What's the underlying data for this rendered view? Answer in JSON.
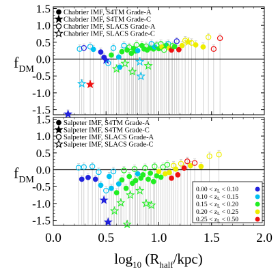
{
  "chart_data": [
    {
      "type": "scatter",
      "xlabel": "",
      "ylabel": "f",
      "ylabel_sub": "DM",
      "xlim": [
        0.0,
        2.0
      ],
      "ylim": [
        -1.65,
        1.55
      ],
      "yticks": [
        "1.5",
        "1.0",
        "0.5",
        "0.0",
        "-0.5",
        "-1.0",
        "-1.5"
      ],
      "ytick_values": [
        1.5,
        1.0,
        0.5,
        0.0,
        -0.5,
        -1.0,
        -1.5
      ],
      "zero_line": true,
      "grid": false,
      "legend_placement": "top-left",
      "legend": [
        {
          "label": "Chabrier IMF, S4TM Grade-A",
          "marker": "filled-circle"
        },
        {
          "label": "Chabrier IMF, S4TM Grade-C",
          "marker": "filled-star"
        },
        {
          "label": "Chabrier IMF, SLACS Grade-A",
          "marker": "open-circle"
        },
        {
          "label": "Chabrier IMF, SLACS Grade-C",
          "marker": "open-star"
        }
      ],
      "points": [
        {
          "x": 0.14,
          "y": -1.63,
          "m": "fstar",
          "c": 1
        },
        {
          "x": 0.27,
          "y": -0.73,
          "m": "ostar",
          "c": 2
        },
        {
          "x": 0.35,
          "y": -0.75,
          "m": "fstar",
          "c": 5
        },
        {
          "x": 0.25,
          "y": 0.3,
          "m": "ocircle",
          "c": 2
        },
        {
          "x": 0.29,
          "y": 0.33,
          "m": "ocircle",
          "c": 1
        },
        {
          "x": 0.35,
          "y": 0.37,
          "m": "ocircle",
          "c": 2
        },
        {
          "x": 0.38,
          "y": 0.29,
          "m": "fcircle",
          "c": 2
        },
        {
          "x": 0.45,
          "y": 0.21,
          "m": "fcircle",
          "c": 1
        },
        {
          "x": 0.48,
          "y": 0.05,
          "m": "fcircle",
          "c": 1
        },
        {
          "x": 0.5,
          "y": -0.03,
          "m": "fstar",
          "c": 1
        },
        {
          "x": 0.52,
          "y": -0.12,
          "m": "ocircle",
          "c": 2
        },
        {
          "x": 0.55,
          "y": 0.12,
          "m": "fcircle",
          "c": 3
        },
        {
          "x": 0.57,
          "y": 0.33,
          "m": "ocircle",
          "c": 2
        },
        {
          "x": 0.6,
          "y": -0.29,
          "m": "ostar",
          "c": 3
        },
        {
          "x": 0.62,
          "y": 0.06,
          "m": "fcircle",
          "c": 2
        },
        {
          "x": 0.63,
          "y": -0.24,
          "m": "fcircle",
          "c": 2
        },
        {
          "x": 0.65,
          "y": 0.22,
          "m": "fcircle",
          "c": 3
        },
        {
          "x": 0.67,
          "y": 0.4,
          "m": "ocircle",
          "c": 2
        },
        {
          "x": 0.68,
          "y": -0.13,
          "m": "ostar",
          "c": 3
        },
        {
          "x": 0.7,
          "y": 0.27,
          "m": "fcircle",
          "c": 3
        },
        {
          "x": 0.72,
          "y": 0.35,
          "m": "ocircle",
          "c": 3
        },
        {
          "x": 0.74,
          "y": 0.17,
          "m": "fcircle",
          "c": 3
        },
        {
          "x": 0.75,
          "y": -0.37,
          "m": "ostar",
          "c": 3
        },
        {
          "x": 0.76,
          "y": 0.32,
          "m": "fcircle",
          "c": 3
        },
        {
          "x": 0.78,
          "y": 0.24,
          "m": "fcircle",
          "c": 3
        },
        {
          "x": 0.79,
          "y": 0.42,
          "m": "ocircle",
          "c": 3
        },
        {
          "x": 0.8,
          "y": 0.25,
          "m": "fcircle",
          "c": 2
        },
        {
          "x": 0.82,
          "y": -0.08,
          "m": "ostar",
          "c": 2
        },
        {
          "x": 0.83,
          "y": -0.51,
          "m": "ostar",
          "c": 2
        },
        {
          "x": 0.84,
          "y": 0.4,
          "m": "fcircle",
          "c": 3
        },
        {
          "x": 0.86,
          "y": 0.3,
          "m": "fcircle",
          "c": 3
        },
        {
          "x": 0.88,
          "y": 0.38,
          "m": "ocircle",
          "c": 3
        },
        {
          "x": 0.89,
          "y": 0.27,
          "m": "fcircle",
          "c": 3
        },
        {
          "x": 0.9,
          "y": -0.2,
          "m": "ostar",
          "c": 3
        },
        {
          "x": 0.92,
          "y": 0.33,
          "m": "fcircle",
          "c": 3
        },
        {
          "x": 0.93,
          "y": 0.45,
          "m": "ocircle",
          "c": 2
        },
        {
          "x": 0.95,
          "y": 0.3,
          "m": "fcircle",
          "c": 3
        },
        {
          "x": 0.96,
          "y": 0.36,
          "m": "fcircle",
          "c": 2
        },
        {
          "x": 0.98,
          "y": 0.41,
          "m": "ocircle",
          "c": 3
        },
        {
          "x": 1.0,
          "y": 0.31,
          "m": "fcircle",
          "c": 3
        },
        {
          "x": 1.02,
          "y": 0.45,
          "m": "ocircle",
          "c": 3
        },
        {
          "x": 1.03,
          "y": 0.36,
          "m": "fcircle",
          "c": 4
        },
        {
          "x": 1.05,
          "y": 0.27,
          "m": "ocircle",
          "c": 3
        },
        {
          "x": 1.07,
          "y": 0.41,
          "m": "fcircle",
          "c": 3
        },
        {
          "x": 1.09,
          "y": 0.45,
          "m": "ocircle",
          "c": 2
        },
        {
          "x": 1.1,
          "y": 0.33,
          "m": "fcircle",
          "c": 4
        },
        {
          "x": 1.12,
          "y": 0.27,
          "m": "fcircle",
          "c": 5
        },
        {
          "x": 1.13,
          "y": 0.39,
          "m": "ocircle",
          "c": 3
        },
        {
          "x": 1.15,
          "y": 0.37,
          "m": "fcircle",
          "c": 3
        },
        {
          "x": 1.17,
          "y": 0.53,
          "m": "ocircle",
          "c": 1
        },
        {
          "x": 1.19,
          "y": 0.28,
          "m": "fcircle",
          "c": 5
        },
        {
          "x": 1.22,
          "y": 0.4,
          "m": "fcircle",
          "c": 4
        },
        {
          "x": 1.25,
          "y": 0.55,
          "m": "ocircle",
          "c": 4
        },
        {
          "x": 1.28,
          "y": 0.51,
          "m": "fstar",
          "c": 4
        },
        {
          "x": 1.31,
          "y": 0.48,
          "m": "ocircle",
          "c": 4
        },
        {
          "x": 1.35,
          "y": 0.42,
          "m": "fcircle",
          "c": 4
        },
        {
          "x": 1.42,
          "y": 0.36,
          "m": "fcircle",
          "c": 4
        },
        {
          "x": 1.47,
          "y": 0.65,
          "m": "ocircle",
          "c": 4
        },
        {
          "x": 1.52,
          "y": 0.3,
          "m": "ocircle",
          "c": 5
        },
        {
          "x": 1.58,
          "y": 0.62,
          "m": "ocircle",
          "c": 5
        }
      ]
    },
    {
      "type": "scatter",
      "xlabel": "log",
      "xlabel_sub": "10",
      "xlabel_rest": " (R",
      "xlabel_sub2": "half",
      "xlabel_end": "/kpc)",
      "ylabel": "f",
      "ylabel_sub": "DM",
      "xlim": [
        0.0,
        2.0
      ],
      "ylim": [
        -1.65,
        1.55
      ],
      "xticks": [
        "0.0",
        "0.5",
        "1.0",
        "1.5",
        "2.0"
      ],
      "xtick_values": [
        0.0,
        0.5,
        1.0,
        1.5,
        2.0
      ],
      "yticks": [
        "1.5",
        "1.0",
        "0.5",
        "0.0",
        "-0.5",
        "-1.0",
        "-1.5"
      ],
      "ytick_values": [
        1.5,
        1.0,
        0.5,
        0.0,
        -0.5,
        -1.0,
        -1.5
      ],
      "zero_line": true,
      "grid": false,
      "legend_placement": "top-left",
      "legend": [
        {
          "label": "Salpeter IMF, S4TM Grade-A",
          "marker": "filled-circle"
        },
        {
          "label": "Salpeter IMF, S4TM Grade-C",
          "marker": "filled-star"
        },
        {
          "label": "Salpeter IMF, SLACS Grade-A",
          "marker": "open-circle"
        },
        {
          "label": "Salpeter IMF, SLACS Grade-C",
          "marker": "open-star"
        }
      ],
      "redshift_legend_placement": "bottom-right",
      "redshift_bins": [
        {
          "label": "0.00 < z",
          "sub": "L",
          "rest": " < 0.10",
          "color": "#2222dd"
        },
        {
          "label": "0.10 < z",
          "sub": "L",
          "rest": " < 0.15",
          "color": "#00c0f0"
        },
        {
          "label": "0.15 < z",
          "sub": "L",
          "rest": " < 0.20",
          "color": "#22ee22"
        },
        {
          "label": "0.20 < z",
          "sub": "L",
          "rest": " < 0.25",
          "color": "#eeee00"
        },
        {
          "label": "0.25 < z",
          "sub": "L",
          "rest": " < 0.50",
          "color": "#ee1111"
        }
      ],
      "points": [
        {
          "x": 0.24,
          "y": 0.06,
          "m": "ocircle",
          "c": 2
        },
        {
          "x": 0.27,
          "y": -0.28,
          "m": "fcircle",
          "c": 1
        },
        {
          "x": 0.29,
          "y": 0.08,
          "m": "ocircle",
          "c": 2
        },
        {
          "x": 0.33,
          "y": -0.23,
          "m": "fcircle",
          "c": 1
        },
        {
          "x": 0.37,
          "y": 0.1,
          "m": "ocircle",
          "c": 2
        },
        {
          "x": 0.4,
          "y": -0.28,
          "m": "fcircle",
          "c": 1
        },
        {
          "x": 0.43,
          "y": -0.07,
          "m": "ocircle",
          "c": 2
        },
        {
          "x": 0.45,
          "y": -0.46,
          "m": "fcircle",
          "c": 2
        },
        {
          "x": 0.48,
          "y": -0.9,
          "m": "fstar",
          "c": 1
        },
        {
          "x": 0.5,
          "y": -0.62,
          "m": "ocircle",
          "c": 2
        },
        {
          "x": 0.52,
          "y": -1.55,
          "m": "fstar",
          "c": 1
        },
        {
          "x": 0.53,
          "y": -0.2,
          "m": "fcircle",
          "c": 2
        },
        {
          "x": 0.55,
          "y": -0.55,
          "m": "fcircle",
          "c": 2
        },
        {
          "x": 0.57,
          "y": -0.05,
          "m": "ocircle",
          "c": 2
        },
        {
          "x": 0.58,
          "y": -1.22,
          "m": "ostar",
          "c": 3
        },
        {
          "x": 0.6,
          "y": -0.68,
          "m": "fcircle",
          "c": 3
        },
        {
          "x": 0.62,
          "y": -0.42,
          "m": "fcircle",
          "c": 2
        },
        {
          "x": 0.64,
          "y": -0.98,
          "m": "ostar",
          "c": 3
        },
        {
          "x": 0.65,
          "y": -0.3,
          "m": "fcircle",
          "c": 3
        },
        {
          "x": 0.67,
          "y": -0.02,
          "m": "ocircle",
          "c": 3
        },
        {
          "x": 0.69,
          "y": -0.55,
          "m": "fcircle",
          "c": 3
        },
        {
          "x": 0.7,
          "y": -1.62,
          "m": "ostar",
          "c": 3
        },
        {
          "x": 0.72,
          "y": -0.2,
          "m": "fcircle",
          "c": 3
        },
        {
          "x": 0.73,
          "y": -0.75,
          "m": "ostar",
          "c": 3
        },
        {
          "x": 0.75,
          "y": -0.4,
          "m": "fcircle",
          "c": 3
        },
        {
          "x": 0.77,
          "y": 0.02,
          "m": "ocircle",
          "c": 3
        },
        {
          "x": 0.78,
          "y": -0.32,
          "m": "fcircle",
          "c": 3
        },
        {
          "x": 0.8,
          "y": -0.12,
          "m": "fcircle",
          "c": 2
        },
        {
          "x": 0.82,
          "y": -0.62,
          "m": "ostar",
          "c": 3
        },
        {
          "x": 0.83,
          "y": -0.25,
          "m": "fcircle",
          "c": 3
        },
        {
          "x": 0.85,
          "y": -0.15,
          "m": "fcircle",
          "c": 3
        },
        {
          "x": 0.87,
          "y": 0.05,
          "m": "ocircle",
          "c": 3
        },
        {
          "x": 0.88,
          "y": -1.0,
          "m": "ostar",
          "c": 3
        },
        {
          "x": 0.9,
          "y": -0.28,
          "m": "fcircle",
          "c": 3
        },
        {
          "x": 0.92,
          "y": -0.1,
          "m": "fcircle",
          "c": 3
        },
        {
          "x": 0.93,
          "y": -1.05,
          "m": "ostar",
          "c": 3
        },
        {
          "x": 0.95,
          "y": -0.35,
          "m": "fcircle",
          "c": 3
        },
        {
          "x": 0.96,
          "y": 0.1,
          "m": "ocircle",
          "c": 3
        },
        {
          "x": 0.98,
          "y": -0.18,
          "m": "fcircle",
          "c": 3
        },
        {
          "x": 1.0,
          "y": -0.05,
          "m": "fcircle",
          "c": 4
        },
        {
          "x": 1.02,
          "y": -0.22,
          "m": "fcircle",
          "c": 3
        },
        {
          "x": 1.04,
          "y": 0.08,
          "m": "ocircle",
          "c": 3
        },
        {
          "x": 1.06,
          "y": -0.12,
          "m": "fcircle",
          "c": 4
        },
        {
          "x": 1.08,
          "y": 0.15,
          "m": "ocircle",
          "c": 3
        },
        {
          "x": 1.1,
          "y": -0.08,
          "m": "fcircle",
          "c": 4
        },
        {
          "x": 1.12,
          "y": -0.25,
          "m": "fcircle",
          "c": 5
        },
        {
          "x": 1.14,
          "y": 0.12,
          "m": "ocircle",
          "c": 4
        },
        {
          "x": 1.16,
          "y": 0.02,
          "m": "fcircle",
          "c": 4
        },
        {
          "x": 1.18,
          "y": -0.15,
          "m": "fcircle",
          "c": 5
        },
        {
          "x": 1.21,
          "y": 0.18,
          "m": "ocircle",
          "c": 4
        },
        {
          "x": 1.24,
          "y": 0.05,
          "m": "fcircle",
          "c": 5
        },
        {
          "x": 1.27,
          "y": 0.25,
          "m": "ocircle",
          "c": 5
        },
        {
          "x": 1.3,
          "y": 0.12,
          "m": "fcircle",
          "c": 4
        },
        {
          "x": 1.34,
          "y": 0.2,
          "m": "ocircle",
          "c": 5
        },
        {
          "x": 1.4,
          "y": 0.1,
          "m": "fcircle",
          "c": 4
        },
        {
          "x": 1.48,
          "y": 0.4,
          "m": "ocircle",
          "c": 4
        },
        {
          "x": 1.57,
          "y": 0.45,
          "m": "ocircle",
          "c": 4
        }
      ]
    }
  ]
}
